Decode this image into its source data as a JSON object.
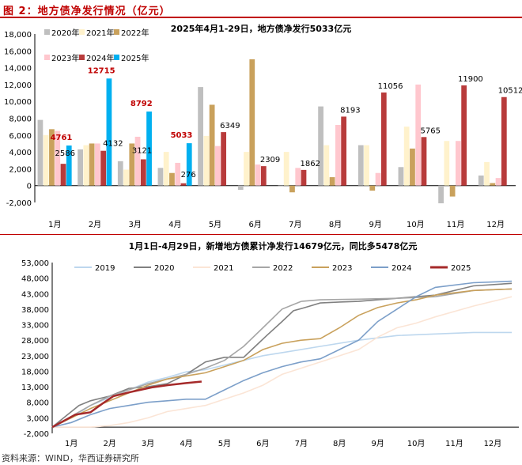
{
  "header": {
    "title": "图 2：地方债净发行情况（亿元）"
  },
  "footer": {
    "source": "资料来源：WIND，华西证券研究所"
  },
  "chart_data": [
    {
      "type": "bar",
      "title": "2025年4月1-29日，地方债净发行5033亿元",
      "categories": [
        "1月",
        "2月",
        "3月",
        "4月",
        "5月",
        "6月",
        "7月",
        "8月",
        "9月",
        "10月",
        "11月",
        "12月"
      ],
      "ylim": [
        -2000,
        18000
      ],
      "yticks": [
        "-2,000",
        "0",
        "2,000",
        "4,000",
        "6,000",
        "8,000",
        "10,000",
        "12,000",
        "14,000",
        "16,000",
        "18,000"
      ],
      "legend": [
        "2020年",
        "2021年",
        "2022年",
        "2023年",
        "2024年",
        "2025年"
      ],
      "series": [
        {
          "name": "2020年",
          "color": "#bfbfbf",
          "values": [
            7800,
            4300,
            2900,
            2100,
            11700,
            -500,
            -100,
            9400,
            4800,
            2200,
            -2100,
            1200
          ]
        },
        {
          "name": "2021年",
          "color": "#fff2cc",
          "values": [
            6000,
            4800,
            1900,
            4000,
            5900,
            4000,
            4000,
            4800,
            4800,
            7000,
            5300,
            2800
          ]
        },
        {
          "name": "2022年",
          "color": "#c9a15c",
          "values": [
            6700,
            5000,
            5000,
            1500,
            9600,
            15000,
            -800,
            1000,
            -600,
            4400,
            -1300,
            300
          ]
        },
        {
          "name": "2023年",
          "color": "#ffc7ce",
          "values": [
            6500,
            5000,
            5800,
            2700,
            4700,
            2500,
            2100,
            7200,
            1500,
            12000,
            5300,
            900
          ]
        },
        {
          "name": "2024年",
          "color": "#b83b3b",
          "values": [
            2586,
            4132,
            3121,
            276,
            6349,
            2309,
            1862,
            8193,
            11056,
            5765,
            11900,
            10512
          ]
        },
        {
          "name": "2025年",
          "color": "#00b0f0",
          "values": [
            4761,
            12715,
            8792,
            5033,
            null,
            null,
            null,
            null,
            null,
            null,
            null,
            null
          ]
        }
      ],
      "labels_2024": [
        "2586",
        "4132",
        "3121",
        "276",
        "6349",
        "2309",
        "1862",
        "8193",
        "11056",
        "5765",
        "11900",
        "10512"
      ],
      "labels_2025": [
        "4761",
        "12715",
        "8792",
        "5033"
      ]
    },
    {
      "type": "line",
      "title": "1月1日-4月29日，新增地方债累计净发行14679亿元，同比多5478亿元",
      "x_categories": [
        "1月",
        "2月",
        "3月",
        "4月",
        "5月",
        "6月",
        "7月",
        "8月",
        "9月",
        "10月",
        "11月",
        "12月"
      ],
      "ylim": [
        -2000,
        53000
      ],
      "yticks": [
        "-2,000",
        "3,000",
        "8,000",
        "13,000",
        "18,000",
        "23,000",
        "28,000",
        "33,000",
        "38,000",
        "43,000",
        "48,000",
        "53,000"
      ],
      "series": [
        {
          "name": "2019",
          "color": "#bdd7ee",
          "points": [
            [
              0,
              0
            ],
            [
              0.5,
              3000
            ],
            [
              1,
              7000
            ],
            [
              1.5,
              9500
            ],
            [
              2,
              12000
            ],
            [
              2.5,
              14500
            ],
            [
              3,
              16000
            ],
            [
              3.5,
              17800
            ],
            [
              4,
              18500
            ],
            [
              4.5,
              20000
            ],
            [
              5,
              21500
            ],
            [
              5.5,
              23000
            ],
            [
              6,
              24000
            ],
            [
              7,
              26000
            ],
            [
              8,
              28000
            ],
            [
              9,
              29500
            ],
            [
              10,
              30000
            ],
            [
              11,
              30500
            ],
            [
              12,
              30500
            ]
          ]
        },
        {
          "name": "2020",
          "color": "#808080",
          "points": [
            [
              0,
              0
            ],
            [
              0.4,
              4000
            ],
            [
              0.7,
              7000
            ],
            [
              1,
              8500
            ],
            [
              1.5,
              10000
            ],
            [
              2,
              12500
            ],
            [
              2.5,
              13000
            ],
            [
              3,
              14000
            ],
            [
              3.5,
              17000
            ],
            [
              4,
              21000
            ],
            [
              4.5,
              22500
            ],
            [
              5,
              22500
            ],
            [
              5.3,
              26000
            ],
            [
              5.6,
              29500
            ],
            [
              6,
              34000
            ],
            [
              6.3,
              37500
            ],
            [
              6.6,
              38500
            ],
            [
              7,
              40000
            ],
            [
              7.5,
              40300
            ],
            [
              8,
              40500
            ],
            [
              8.5,
              41000
            ],
            [
              9,
              41500
            ],
            [
              10,
              42500
            ],
            [
              11,
              45500
            ],
            [
              12,
              46300
            ]
          ]
        },
        {
          "name": "2021",
          "color": "#fbe5d6",
          "points": [
            [
              0,
              0
            ],
            [
              1,
              0
            ],
            [
              1.5,
              500
            ],
            [
              2,
              1500
            ],
            [
              2.5,
              3000
            ],
            [
              3,
              5000
            ],
            [
              3.5,
              6000
            ],
            [
              4,
              7000
            ],
            [
              4.5,
              9000
            ],
            [
              5,
              11000
            ],
            [
              5.5,
              13500
            ],
            [
              6,
              17000
            ],
            [
              7,
              21000
            ],
            [
              8,
              25000
            ],
            [
              8.5,
              29000
            ],
            [
              9,
              32000
            ],
            [
              9.5,
              33500
            ],
            [
              10,
              35500
            ],
            [
              11,
              39000
            ],
            [
              12,
              42000
            ]
          ]
        },
        {
          "name": "2022",
          "color": "#a6a6a6",
          "points": [
            [
              0,
              0
            ],
            [
              0.5,
              3500
            ],
            [
              1,
              7000
            ],
            [
              1.5,
              10000
            ],
            [
              2,
              12000
            ],
            [
              2.5,
              14000
            ],
            [
              3,
              15500
            ],
            [
              3.5,
              17000
            ],
            [
              4,
              19000
            ],
            [
              4.5,
              21500
            ],
            [
              5,
              26000
            ],
            [
              5.5,
              32000
            ],
            [
              6,
              38000
            ],
            [
              6.5,
              40500
            ],
            [
              7,
              41000
            ],
            [
              8,
              41200
            ],
            [
              9,
              41500
            ],
            [
              10,
              42000
            ],
            [
              11,
              44000
            ],
            [
              12,
              44500
            ]
          ]
        },
        {
          "name": "2023",
          "color": "#c9a15c",
          "points": [
            [
              0,
              0
            ],
            [
              0.5,
              3000
            ],
            [
              1,
              6000
            ],
            [
              1.5,
              8500
            ],
            [
              2,
              11000
            ],
            [
              2.5,
              13500
            ],
            [
              3,
              15500
            ],
            [
              3.5,
              16500
            ],
            [
              4,
              17500
            ],
            [
              4.5,
              19500
            ],
            [
              5,
              21500
            ],
            [
              5.5,
              25000
            ],
            [
              6,
              27000
            ],
            [
              6.5,
              28000
            ],
            [
              7,
              28500
            ],
            [
              7.5,
              32000
            ],
            [
              8,
              36000
            ],
            [
              8.5,
              38500
            ],
            [
              9,
              40000
            ],
            [
              9.5,
              41000
            ],
            [
              10,
              42500
            ],
            [
              11,
              44000
            ],
            [
              12,
              44500
            ]
          ]
        },
        {
          "name": "2024",
          "color": "#7c9fc9",
          "points": [
            [
              0,
              0
            ],
            [
              0.5,
              1500
            ],
            [
              1,
              4000
            ],
            [
              1.5,
              6000
            ],
            [
              2,
              7000
            ],
            [
              2.5,
              8000
            ],
            [
              3,
              8500
            ],
            [
              3.5,
              9000
            ],
            [
              4,
              9000
            ],
            [
              4.5,
              12000
            ],
            [
              5,
              15000
            ],
            [
              5.5,
              17500
            ],
            [
              6,
              19500
            ],
            [
              6.5,
              21000
            ],
            [
              7,
              22000
            ],
            [
              7.5,
              25000
            ],
            [
              8,
              28000
            ],
            [
              8.5,
              34000
            ],
            [
              9,
              38000
            ],
            [
              9.5,
              42000
            ],
            [
              10,
              45000
            ],
            [
              11,
              46500
            ],
            [
              12,
              47000
            ]
          ]
        },
        {
          "name": "2025",
          "color": "#a52a2a",
          "points": [
            [
              0,
              0
            ],
            [
              0.3,
              2000
            ],
            [
              0.6,
              4000
            ],
            [
              1,
              4800
            ],
            [
              1.3,
              7500
            ],
            [
              1.6,
              10000
            ],
            [
              2,
              11200
            ],
            [
              2.3,
              12000
            ],
            [
              2.6,
              12800
            ],
            [
              3,
              13500
            ],
            [
              3.5,
              14200
            ],
            [
              3.9,
              14679
            ]
          ]
        }
      ]
    }
  ]
}
